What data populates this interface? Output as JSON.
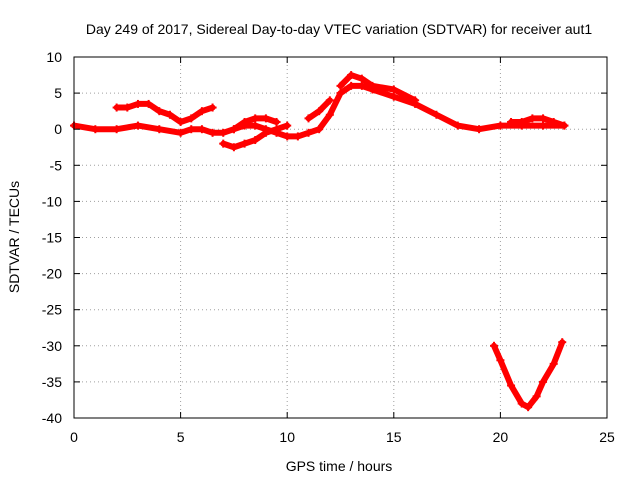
{
  "chart_data": {
    "type": "scatter",
    "title": "Day 249 of 2017, Sidereal Day-to-day VTEC variation (SDTVAR) for receiver aut1",
    "xlabel": "GPS time / hours",
    "ylabel": "SDTVAR / TECUs",
    "xlim": [
      0,
      25
    ],
    "ylim": [
      -40,
      10
    ],
    "x_ticks": [
      0,
      5,
      10,
      15,
      20,
      25
    ],
    "y_ticks": [
      -40,
      -35,
      -30,
      -25,
      -20,
      -15,
      -10,
      -5,
      0,
      5,
      10
    ],
    "grid": true,
    "legend": "none",
    "series": [
      {
        "name": "main arc",
        "color": "#ff0000",
        "x": [
          0,
          1,
          2,
          3,
          4,
          5,
          5.5,
          6,
          6.5,
          7,
          7.5,
          8,
          8.5,
          9,
          9.5,
          10,
          10.5,
          11,
          11.5,
          12,
          12.5,
          13,
          13.5,
          14,
          15,
          16,
          17,
          18,
          19,
          20,
          21,
          22,
          23
        ],
        "y": [
          0.5,
          0,
          0,
          0.5,
          0,
          -0.5,
          0,
          0,
          -0.5,
          -0.5,
          0,
          0.5,
          0.5,
          0,
          -0.5,
          -1,
          -1,
          -0.5,
          0,
          2,
          5,
          6,
          6,
          5.5,
          4.5,
          3.5,
          2,
          0.5,
          0,
          0.5,
          0.5,
          0.5,
          0.5
        ]
      },
      {
        "name": "upper arc",
        "color": "#ff0000",
        "x": [
          12.5,
          13,
          13.5,
          14,
          15,
          16
        ],
        "y": [
          6,
          7.5,
          7,
          6,
          5.5,
          4
        ]
      },
      {
        "name": "short arc A",
        "color": "#ff0000",
        "x": [
          2,
          2.5,
          3,
          3.5,
          4,
          4.5,
          5,
          5.5,
          6,
          6.5
        ],
        "y": [
          3,
          3,
          3.5,
          3.5,
          2.5,
          2,
          1,
          1.5,
          2.5,
          3
        ]
      },
      {
        "name": "short arc B",
        "color": "#ff0000",
        "x": [
          7,
          7.5,
          8,
          8.5,
          9,
          9.5,
          10
        ],
        "y": [
          -2,
          -2.5,
          -2,
          -1.5,
          -0.5,
          0,
          0.5
        ]
      },
      {
        "name": "short arc C",
        "color": "#ff0000",
        "x": [
          7.5,
          8,
          8.5,
          9,
          9.5
        ],
        "y": [
          0,
          1,
          1.5,
          1.5,
          1
        ]
      },
      {
        "name": "short arc D",
        "color": "#ff0000",
        "x": [
          11,
          11.5,
          12
        ],
        "y": [
          1.5,
          2.5,
          4
        ]
      },
      {
        "name": "short arc E",
        "color": "#ff0000",
        "x": [
          20.5,
          21,
          21.5,
          22,
          22.5,
          23
        ],
        "y": [
          1,
          1,
          1.5,
          1.5,
          1,
          0.5
        ]
      },
      {
        "name": "V dip",
        "color": "#ff0000",
        "x": [
          19.7,
          20,
          20.5,
          21,
          21.3,
          21.7,
          22,
          22.5,
          22.9
        ],
        "y": [
          -30,
          -32,
          -35.5,
          -38,
          -38.5,
          -37,
          -35,
          -32.5,
          -29.5
        ]
      }
    ]
  }
}
